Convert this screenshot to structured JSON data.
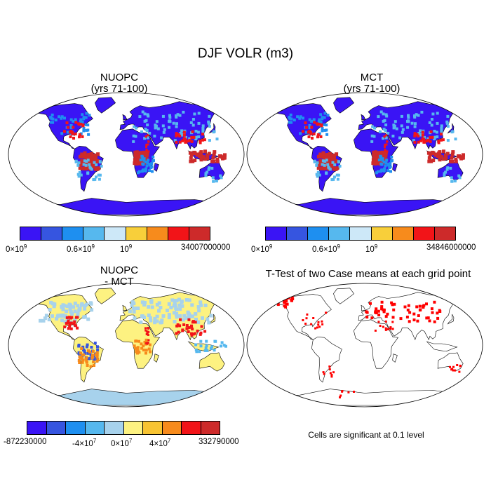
{
  "title": "DJF VOLR (m3)",
  "panels": {
    "nuopc": {
      "title": "NUOPC\n(yrs 71-100)"
    },
    "mct": {
      "title": "MCT\n(yrs 71-100)"
    },
    "diff": {
      "title": "NUOPC\n- MCT"
    },
    "ttest": {
      "title": "T-Test of two Case means at each grid point",
      "note": "Cells are significant at 0.1 level"
    }
  },
  "colorbars": {
    "nuopc": {
      "colors": [
        "#3a14f5",
        "#3655e0",
        "#1e8ff0",
        "#56b8ee",
        "#cde8f8",
        "#f8cf3a",
        "#f78b1c",
        "#f21418",
        "#cd2a2a"
      ],
      "labels": {
        "min": "0×10",
        "min_exp": "9",
        "mid": "0.6×10",
        "mid_exp": "9",
        "mid2": "10",
        "mid2_exp": "9",
        "max": "34007000000"
      }
    },
    "mct": {
      "colors": [
        "#3a14f5",
        "#3655e0",
        "#1e8ff0",
        "#56b8ee",
        "#cde8f8",
        "#f8cf3a",
        "#f78b1c",
        "#f21418",
        "#cd2a2a"
      ],
      "labels": {
        "min": "0×10",
        "min_exp": "9",
        "mid": "0.6×10",
        "mid_exp": "9",
        "mid2": "10",
        "mid2_exp": "9",
        "max": "34846000000"
      }
    },
    "diff": {
      "colors": [
        "#3a14f5",
        "#3655e0",
        "#1e8ff0",
        "#56b8ee",
        "#a7d2ec",
        "#fdf281",
        "#f8c432",
        "#f78b1c",
        "#f21418",
        "#cd2a2a"
      ],
      "labels": {
        "min": "-872230000",
        "neg": "-4×10",
        "neg_exp": "7",
        "zero": "0×10",
        "zero_exp": "7",
        "pos": "4×10",
        "pos_exp": "7",
        "max": "332790000"
      }
    }
  },
  "map_colors": {
    "land_base": "#3a14f5",
    "wet": "#d8282a",
    "diff_pos": "#fdf281",
    "diff_neg": "#a7d2ec",
    "signif": "#ff0000"
  }
}
